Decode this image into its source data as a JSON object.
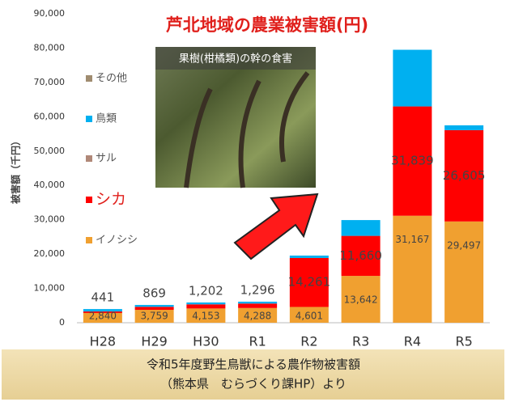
{
  "chart_data": {
    "type": "stacked_bar",
    "title": "芦北地域の農業被害額(円)",
    "y_label": "被害額（千円）",
    "categories": [
      "H28",
      "H29",
      "H30",
      "R1",
      "R2",
      "R3",
      "R4",
      "R5"
    ],
    "series": [
      {
        "name": "イノシシ",
        "color": "#f0a030",
        "values": [
          2840,
          3759,
          4153,
          4288,
          4601,
          13642,
          31167,
          29497
        ],
        "value_labels": [
          "2,840",
          "3,759",
          "4,153",
          "4,288",
          "4,601",
          "13,642",
          "31,167",
          "29,497"
        ]
      },
      {
        "name": "シカ",
        "color": "#ff0000",
        "values": [
          441,
          869,
          1202,
          1296,
          14261,
          11660,
          31839,
          26605
        ],
        "value_labels": [
          "441",
          "869",
          "1,202",
          "1,296",
          "14,261",
          "11,660",
          "31,839",
          "26,605"
        ]
      },
      {
        "name": "サル",
        "color": "#b08878",
        "values": [
          0,
          0,
          0,
          0,
          0,
          0,
          0,
          0
        ]
      },
      {
        "name": "鳥類",
        "color": "#00b0f0",
        "values": [
          700,
          560,
          550,
          550,
          700,
          4600,
          16500,
          1400
        ]
      },
      {
        "name": "その他",
        "color": "#a08c70",
        "values": [
          0,
          0,
          0,
          0,
          0,
          0,
          0,
          0
        ]
      }
    ],
    "ylim": [
      0,
      90000
    ],
    "yticks": [
      0,
      {
        "value": 10000,
        "label": "10,000"
      },
      {
        "value": 20000,
        "label": "20,000"
      },
      {
        "value": 30000,
        "label": "30,000"
      },
      {
        "value": 40000,
        "label": "40,000"
      },
      {
        "value": 50000,
        "label": "50,000"
      },
      {
        "value": 60000,
        "label": "60,000"
      },
      {
        "value": 70000,
        "label": "70,000"
      },
      {
        "value": 80000,
        "label": "80,000"
      },
      {
        "value": 90000,
        "label": "90,000"
      }
    ],
    "grid": false,
    "legend": "left",
    "annotations": {
      "photo_caption": "果樹(柑橘類)の幹の食害",
      "footer": [
        "令和5年度野生鳥獣による農作物被害額",
        "（熊本県　むらづくり課HP）より"
      ]
    }
  }
}
